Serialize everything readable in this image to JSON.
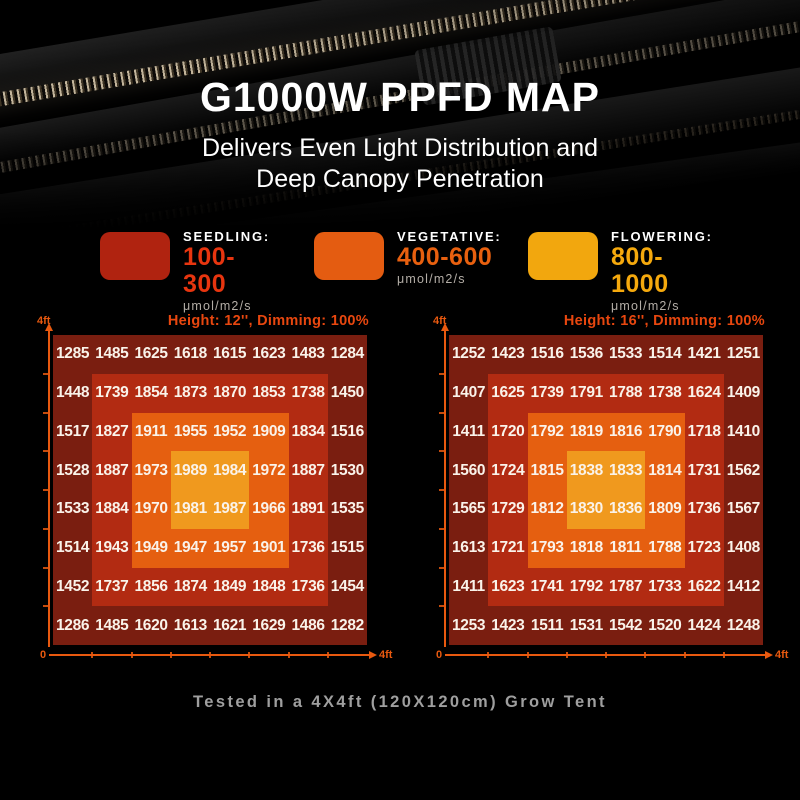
{
  "hero": {
    "title": "G1000W PPFD MAP",
    "subtitle_line1": "Delivers Even Light Distribution and",
    "subtitle_line2": "Deep Canopy Penetration"
  },
  "legend": {
    "items": [
      {
        "label": "SEEDLING:",
        "range": "100-300",
        "unit": "μmol/m2/s",
        "swatch_color": "#b02310",
        "range_color": "#e8350f"
      },
      {
        "label": "VEGETATIVE:",
        "range": "400-600",
        "unit": "μmol/m2/s",
        "swatch_color": "#e45c11",
        "range_color": "#e8600f"
      },
      {
        "label": "FLOWERING:",
        "range": "800-1000",
        "unit": "μmol/m2/s",
        "swatch_color": "#f2a70e",
        "range_color": "#f5a90d"
      }
    ]
  },
  "heat_colors": {
    "outer": "#7a1e10",
    "ring1": "#b22b12",
    "ring2": "#e55f10",
    "center": "#f0991e"
  },
  "accent_colors": {
    "chart_title": "#e8470f",
    "axis": "#e8590f"
  },
  "chart_data": [
    {
      "type": "heatmap",
      "title": "Height: 12'', Dimming: 100%",
      "unit": "μmol/m2/s",
      "x_axis": {
        "min_label": "0",
        "max_label": "4ft"
      },
      "y_axis": {
        "max_label": "4ft"
      },
      "values": [
        [
          1285,
          1485,
          1625,
          1618,
          1615,
          1623,
          1483,
          1284
        ],
        [
          1448,
          1739,
          1854,
          1873,
          1870,
          1853,
          1738,
          1450
        ],
        [
          1517,
          1827,
          1911,
          1955,
          1952,
          1909,
          1834,
          1516
        ],
        [
          1528,
          1887,
          1973,
          1989,
          1984,
          1972,
          1887,
          1530
        ],
        [
          1533,
          1884,
          1970,
          1981,
          1987,
          1966,
          1891,
          1535
        ],
        [
          1514,
          1943,
          1949,
          1947,
          1957,
          1901,
          1736,
          1515
        ],
        [
          1452,
          1737,
          1856,
          1874,
          1849,
          1848,
          1736,
          1454
        ],
        [
          1286,
          1485,
          1620,
          1613,
          1621,
          1629,
          1486,
          1282
        ]
      ]
    },
    {
      "type": "heatmap",
      "title": "Height: 16'', Dimming: 100%",
      "unit": "μmol/m2/s",
      "x_axis": {
        "min_label": "0",
        "max_label": "4ft"
      },
      "y_axis": {
        "max_label": "4ft"
      },
      "values": [
        [
          1252,
          1423,
          1516,
          1536,
          1533,
          1514,
          1421,
          1251
        ],
        [
          1407,
          1625,
          1739,
          1791,
          1788,
          1738,
          1624,
          1409
        ],
        [
          1411,
          1720,
          1792,
          1819,
          1816,
          1790,
          1718,
          1410
        ],
        [
          1560,
          1724,
          1815,
          1838,
          1833,
          1814,
          1731,
          1562
        ],
        [
          1565,
          1729,
          1812,
          1830,
          1836,
          1809,
          1736,
          1567
        ],
        [
          1613,
          1721,
          1793,
          1818,
          1811,
          1788,
          1723,
          1408
        ],
        [
          1411,
          1623,
          1741,
          1792,
          1787,
          1733,
          1622,
          1412
        ],
        [
          1253,
          1423,
          1511,
          1531,
          1542,
          1520,
          1424,
          1248
        ]
      ]
    }
  ],
  "footer": {
    "caption": "Tested in a 4X4ft (120X120cm) Grow Tent"
  }
}
